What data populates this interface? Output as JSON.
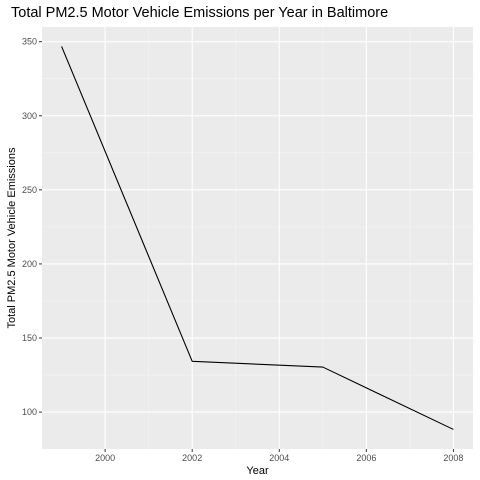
{
  "chart_data": {
    "type": "line",
    "title": "Total PM2.5 Motor Vehicle Emissions per Year in Baltimore",
    "xlabel": "Year",
    "ylabel": "Total PM2.5 Motor Vehicle Emissions",
    "x": [
      1999,
      2002,
      2005,
      2008
    ],
    "series": [
      {
        "values": [
          346.8,
          134.3,
          130.4,
          88.3
        ]
      }
    ],
    "xlim": [
      1998.55,
      2008.45
    ],
    "ylim": [
      75.1,
      359.9
    ],
    "x_ticks": [
      2000,
      2002,
      2004,
      2006,
      2008
    ],
    "x_tick_labels": [
      "2000",
      "2002",
      "2004",
      "2006",
      "2008"
    ],
    "y_ticks": [
      100,
      150,
      200,
      250,
      300,
      350
    ],
    "y_tick_labels": [
      "100",
      "150",
      "200",
      "250",
      "300",
      "350"
    ],
    "grid": true,
    "colors": {
      "panel_background": "#ebebeb",
      "grid_major": "#ffffff",
      "grid_minor": "#f5f5f5",
      "line": "#000000",
      "tick_label": "#4d4d4d",
      "tick_mark": "#333333"
    }
  }
}
